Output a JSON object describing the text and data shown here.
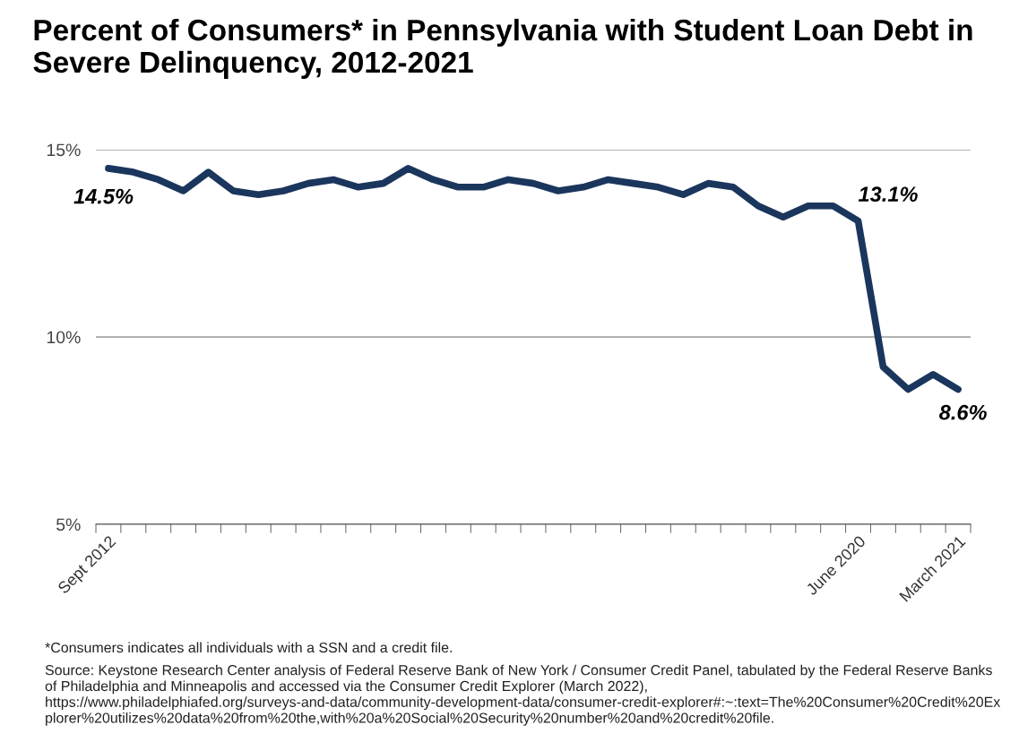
{
  "chart_data": {
    "type": "line",
    "title": "Percent of Consumers* in Pennsylvania with Student Loan Debt in Severe Delinquency, 2012-2021",
    "categories": [
      "Sept 2012",
      null,
      null,
      null,
      null,
      null,
      null,
      null,
      null,
      null,
      null,
      null,
      null,
      null,
      null,
      null,
      null,
      null,
      null,
      null,
      null,
      null,
      null,
      null,
      null,
      null,
      null,
      null,
      null,
      null,
      "June 2020",
      null,
      null,
      null,
      "March 2021"
    ],
    "series": [
      {
        "color": "#1b365d",
        "values": [
          14.5,
          14.4,
          14.2,
          13.9,
          14.4,
          13.9,
          13.8,
          13.9,
          14.1,
          14.2,
          14.0,
          14.1,
          14.5,
          14.2,
          14.0,
          14.0,
          14.2,
          14.1,
          13.9,
          14.0,
          14.2,
          14.1,
          14.0,
          13.8,
          14.1,
          14.0,
          13.5,
          13.2,
          13.5,
          13.5,
          13.1,
          9.2,
          8.6,
          9.0,
          8.6
        ]
      }
    ],
    "ylim": [
      5,
      15
    ],
    "yticks": [
      {
        "value": 5,
        "label": "5%"
      },
      {
        "value": 10,
        "label": "10%"
      },
      {
        "value": 15,
        "label": "15%"
      }
    ],
    "grid": "y",
    "annotations": [
      {
        "text": "14.5%",
        "x": "Sept 2012",
        "y": 14.5
      },
      {
        "text": "13.1%",
        "x": "June 2020",
        "y": 13.1
      },
      {
        "text": "8.6%",
        "x": "March 2021",
        "y": 8.6
      },
      "*Consumers indicates all individuals with a SSN and a credit file.",
      "Source: Keystone Research Center analysis of Federal Reserve Bank of New York / Consumer Credit Panel, tabulated by the Federal Reserve Banks of Philadelphia and Minneapolis and accessed via the Consumer Credit Explorer (March 2022), https://www.philadelphiafed.org/surveys-and-data/community-development-data/consumer-credit-explorer#:~:text=The%20Consumer%20Credit%20Explorer%20utilizes%20data%20from%20the,with%20a%20Social%20Security%20number%20and%20credit%20file."
    ]
  }
}
